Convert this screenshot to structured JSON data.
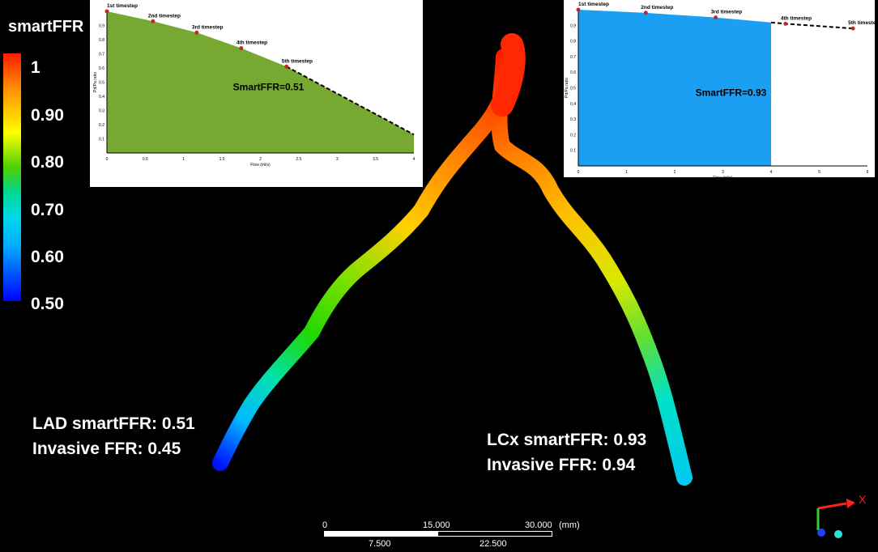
{
  "legend": {
    "title": "smartFFR",
    "ticks": [
      "1",
      "0.90",
      "0.80",
      "0.70",
      "0.60",
      "0.50"
    ]
  },
  "lad": {
    "smart": "LAD smartFFR: 0.51",
    "invasive": "Invasive FFR: 0.45"
  },
  "lcx": {
    "smart": "LCx smartFFR: 0.93",
    "invasive": "Invasive FFR: 0.94"
  },
  "scalebar": {
    "top_labels": [
      "0",
      "15.000",
      "30.000",
      "(mm)"
    ],
    "bottom_labels": [
      "7.500",
      "22.500"
    ]
  },
  "axes_widget": {
    "x_label": "X"
  },
  "chart_data": [
    {
      "type": "area",
      "annotation": "SmartFFR=0.51",
      "xlabel": "Flow (ml/s)",
      "ylabel": "Pd/Pa ratio",
      "xlim": [
        0,
        4
      ],
      "ylim": [
        0,
        1
      ],
      "xticks": [
        "0",
        "0.5",
        "1",
        "1.5",
        "2",
        "2.5",
        "3",
        "3.5",
        "4"
      ],
      "yticks": [
        "0.1",
        "0.2",
        "0.3",
        "0.4",
        "0.5",
        "0.6",
        "0.7",
        "0.8",
        "0.9"
      ],
      "fill_color": "#77a832",
      "points": [
        {
          "label": "1st timestep",
          "x": 0.0,
          "y": 1.0
        },
        {
          "label": "2nd timestep",
          "x": 0.6,
          "y": 0.93
        },
        {
          "label": "3rd timestep",
          "x": 1.17,
          "y": 0.85
        },
        {
          "label": "4th timestep",
          "x": 1.75,
          "y": 0.74
        },
        {
          "label": "5th timestep",
          "x": 2.34,
          "y": 0.61
        }
      ],
      "extrapolated_to": {
        "x": 4.0,
        "y": 0.13
      }
    },
    {
      "type": "area",
      "annotation": "SmartFFR=0.93",
      "xlabel": "Flow (ml/s)",
      "ylabel": "Pd/Pa ratio",
      "xlim": [
        0,
        6
      ],
      "ylim": [
        0,
        1
      ],
      "xticks": [
        "0",
        "1",
        "2",
        "3",
        "4",
        "5",
        "6"
      ],
      "yticks": [
        "0.1",
        "0.2",
        "0.3",
        "0.4",
        "0.5",
        "0.6",
        "0.7",
        "0.8",
        "0.9"
      ],
      "fill_color": "#1b9ff2",
      "fill_to_x": 4.0,
      "points": [
        {
          "label": "1st timestep",
          "x": 0.0,
          "y": 1.0
        },
        {
          "label": "2nd timestep",
          "x": 1.4,
          "y": 0.98
        },
        {
          "label": "3rd timestep",
          "x": 2.85,
          "y": 0.95
        },
        {
          "label": "4th timestep",
          "x": 4.3,
          "y": 0.91
        },
        {
          "label": "5th timestep",
          "x": 5.7,
          "y": 0.88
        }
      ]
    }
  ]
}
